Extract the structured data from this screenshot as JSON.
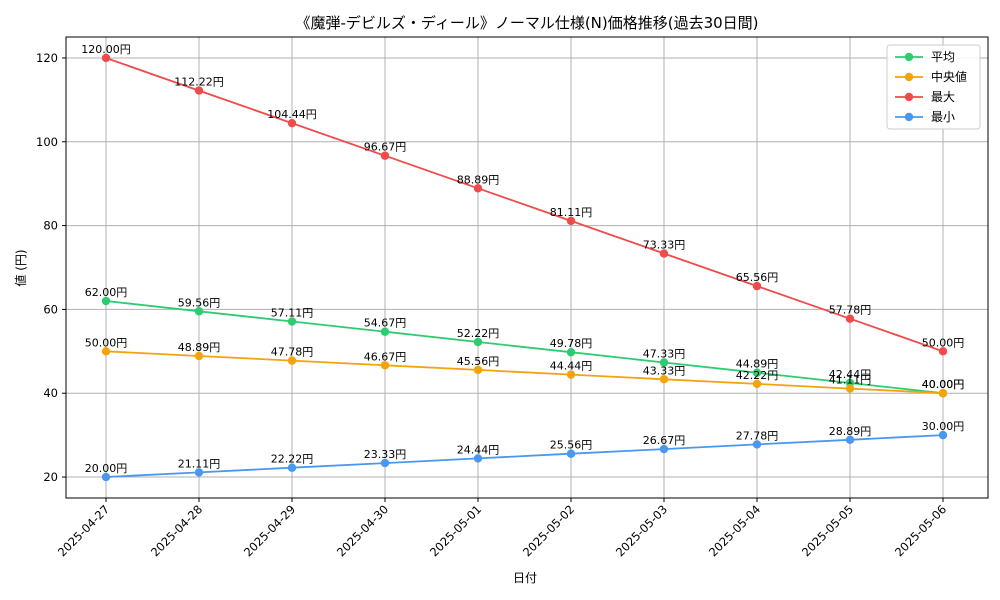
{
  "chart_data": {
    "type": "line",
    "title": "《魔弾-デビルズ・ディール》ノーマル仕様(N)価格推移(過去30日間)",
    "xlabel": "日付",
    "ylabel": "値 (円)",
    "ylim": [
      15,
      125
    ],
    "yticks": [
      20,
      40,
      60,
      80,
      100,
      120
    ],
    "grid": true,
    "legend_position": "top-right",
    "label_suffix": "円",
    "categories": [
      "2025-04-27",
      "2025-04-28",
      "2025-04-29",
      "2025-04-30",
      "2025-05-01",
      "2025-05-02",
      "2025-05-03",
      "2025-05-04",
      "2025-05-05",
      "2025-05-06"
    ],
    "series": [
      {
        "name": "平均",
        "color": "#2ecc71",
        "values": [
          62.0,
          59.56,
          57.11,
          54.67,
          52.22,
          49.78,
          47.33,
          44.89,
          42.44,
          40.0
        ]
      },
      {
        "name": "中央値",
        "color": "#f5a30a",
        "values": [
          50.0,
          48.89,
          47.78,
          46.67,
          45.56,
          44.44,
          43.33,
          42.22,
          41.11,
          40.0
        ]
      },
      {
        "name": "最大",
        "color": "#f04a4a",
        "values": [
          120.0,
          112.22,
          104.44,
          96.67,
          88.89,
          81.11,
          73.33,
          65.56,
          57.78,
          50.0
        ]
      },
      {
        "name": "最小",
        "color": "#4a98ee",
        "values": [
          20.0,
          21.11,
          22.22,
          23.33,
          24.44,
          25.56,
          26.67,
          27.78,
          28.89,
          30.0
        ]
      }
    ]
  }
}
